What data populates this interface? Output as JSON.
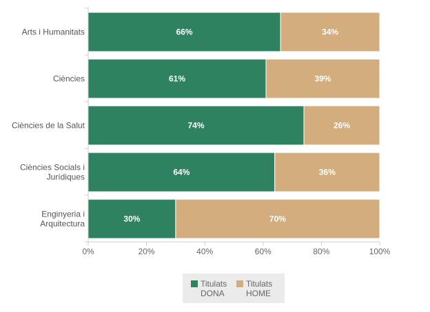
{
  "chart_data": {
    "type": "bar",
    "orientation": "horizontal",
    "stacked": true,
    "percent_scale": true,
    "categories": [
      [
        "Arts i Humanitats"
      ],
      [
        "Ciències"
      ],
      [
        "Ciències de la Salut"
      ],
      [
        "Ciències Socials i",
        "Jurídiques"
      ],
      [
        "Enginyeria i",
        "Arquitectura"
      ]
    ],
    "series": [
      {
        "name": [
          "Titulats",
          "DONA"
        ],
        "color": "#2e8260",
        "values": [
          66,
          61,
          74,
          64,
          30
        ]
      },
      {
        "name": [
          "Titulats",
          "HOME"
        ],
        "color": "#d3ad7d",
        "values": [
          34,
          39,
          26,
          36,
          70
        ]
      }
    ],
    "xlim": [
      0,
      100
    ],
    "x_ticks": [
      0,
      20,
      40,
      60,
      80,
      100
    ],
    "tick_suffix": "%",
    "label_suffix": "%",
    "grid": false,
    "legend_position": "bottom"
  }
}
